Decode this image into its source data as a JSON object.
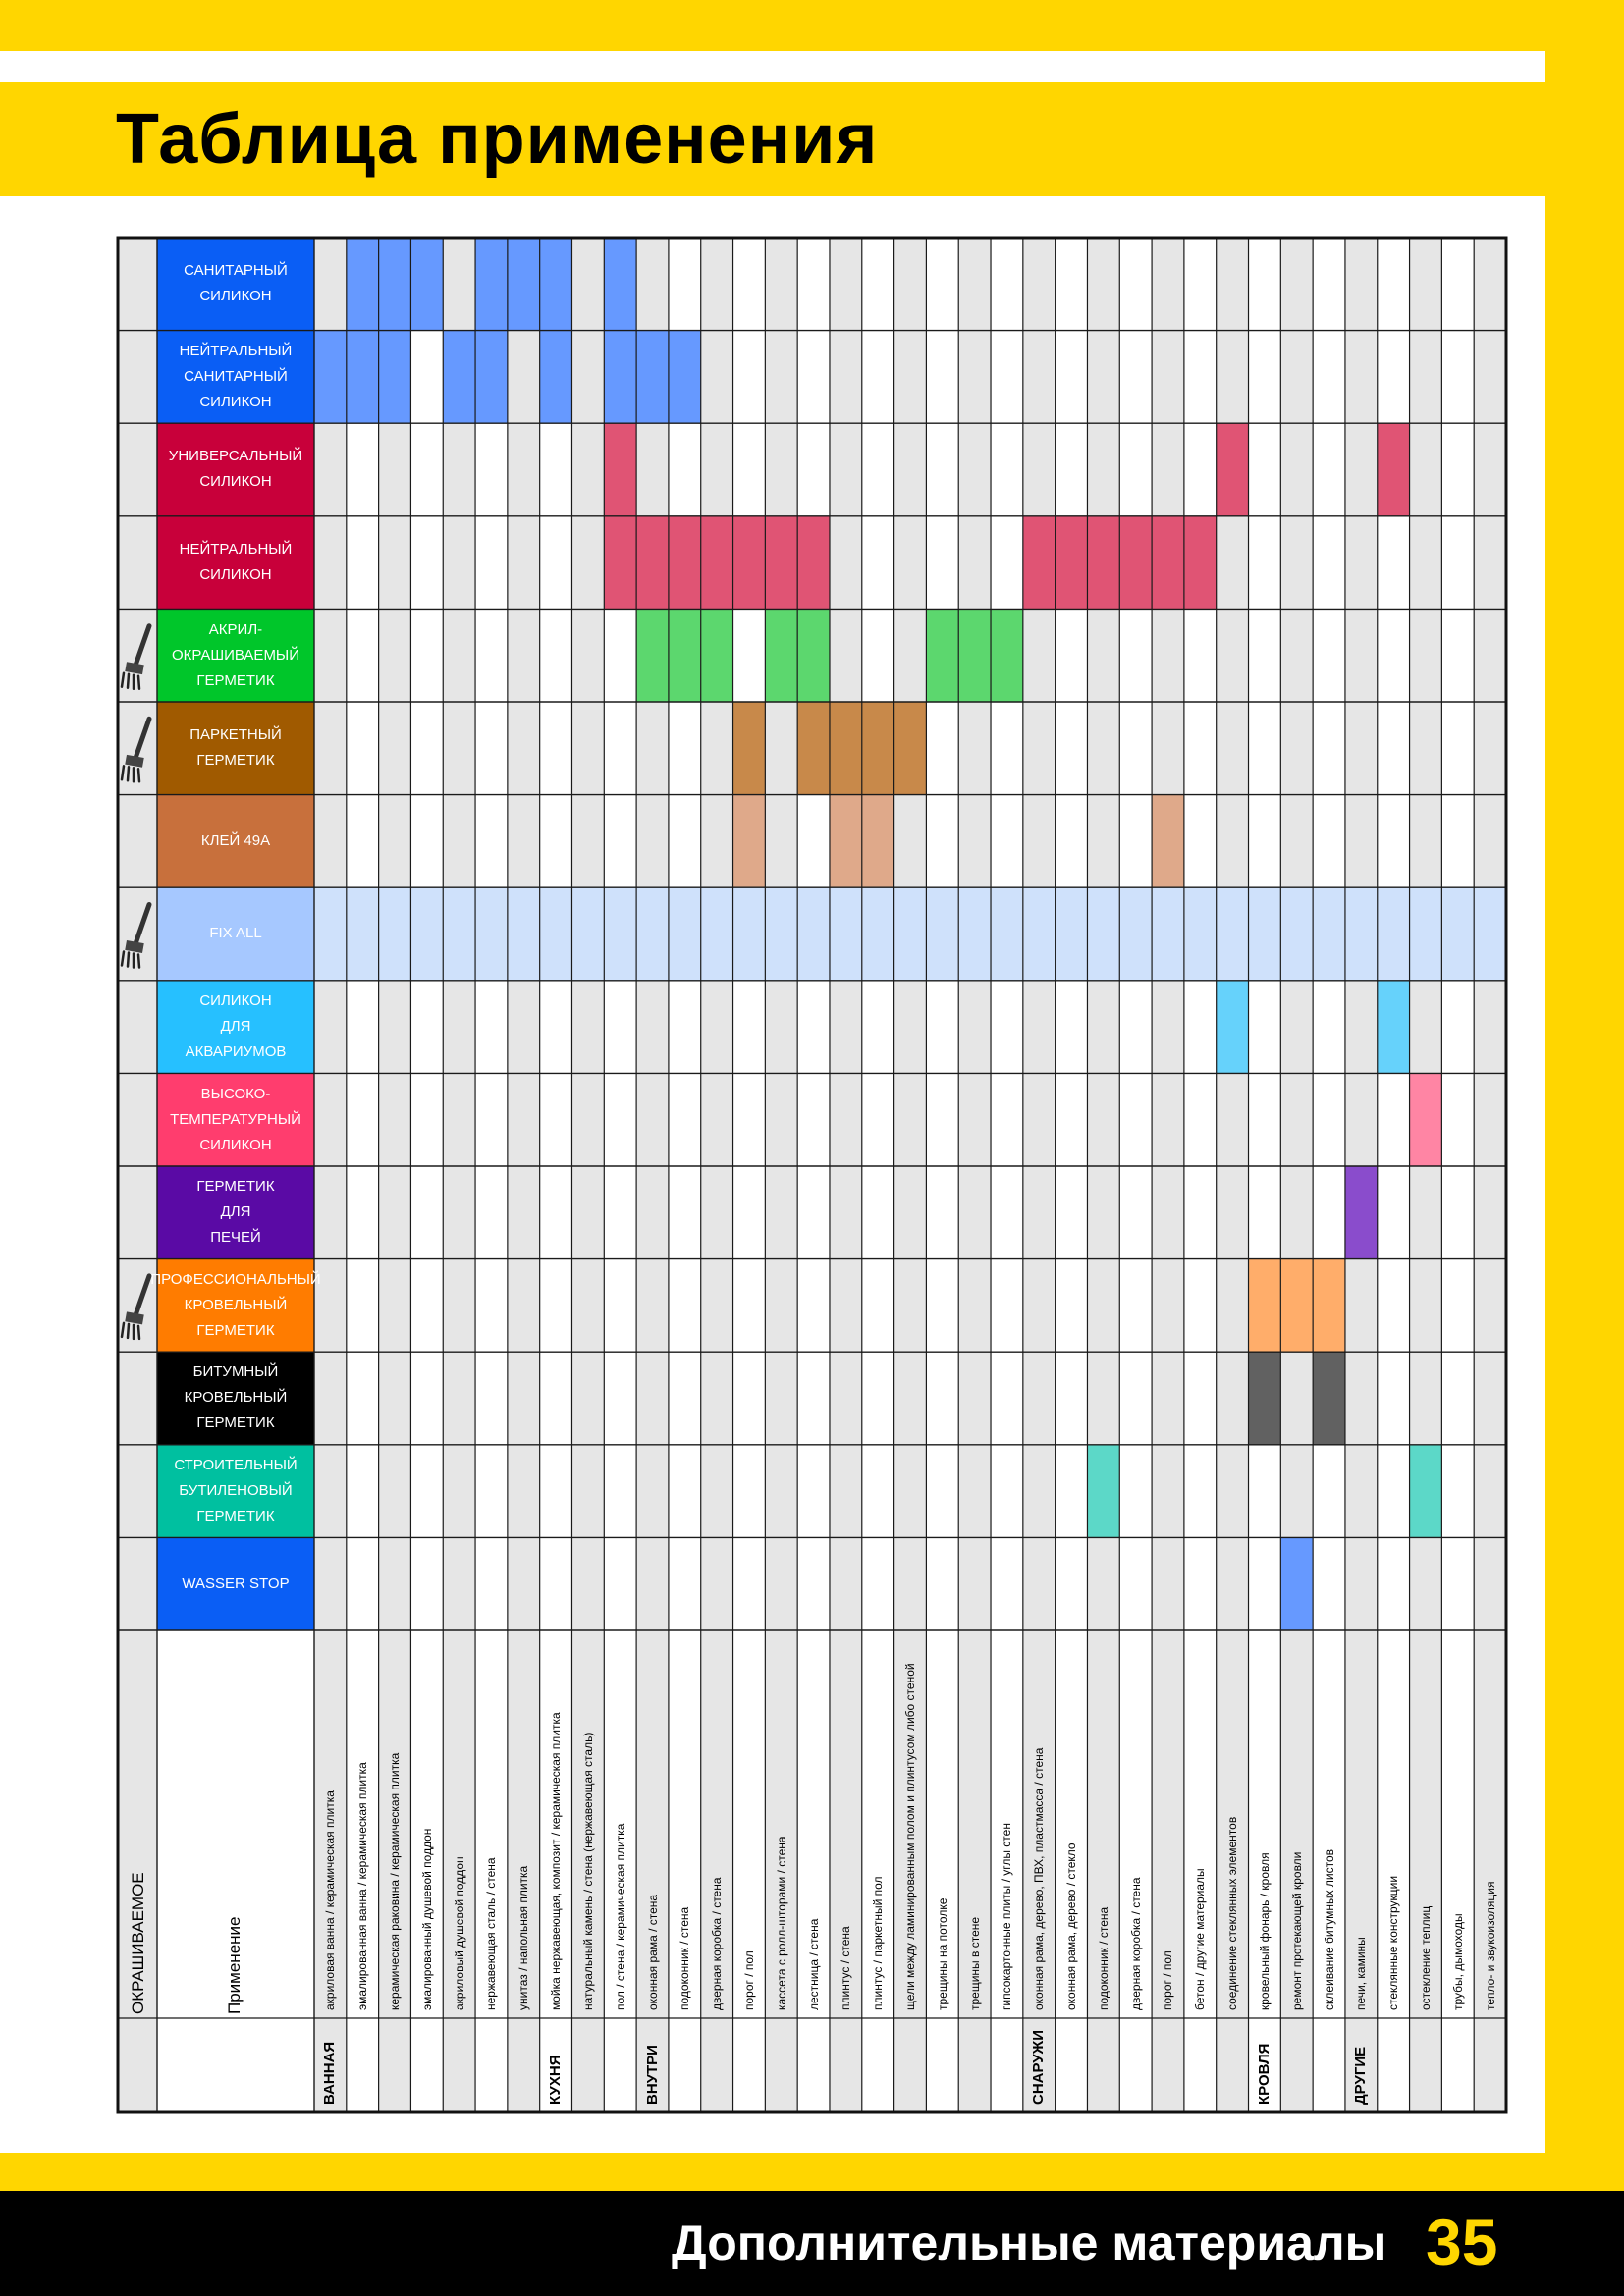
{
  "header": {
    "title": "Таблица применения"
  },
  "footer": {
    "section": "Дополнительные материалы",
    "page_number": "35"
  },
  "table": {
    "paintable_header": "ОКРАШИВАЕМОЕ",
    "application_header": "Применение",
    "colors": {
      "grid_line": "#1a1a1a",
      "gray_col": "#e6e6e6",
      "white_col": "#ffffff"
    },
    "products": [
      {
        "name": "САНИТАРНЫЙ\nСИЛИКОН",
        "color": "#0a5ef5",
        "fill": "#6699ff",
        "paintable": false,
        "cols": [
          1,
          2,
          3,
          5,
          6,
          7,
          9
        ]
      },
      {
        "name": "НЕЙТРАЛЬНЫЙ\nСАНИТАРНЫЙ\nСИЛИКОН",
        "color": "#0a5ef5",
        "fill": "#6699ff",
        "paintable": false,
        "cols": [
          0,
          1,
          2,
          4,
          5,
          7,
          9,
          10,
          11
        ]
      },
      {
        "name": "УНИВЕРСАЛЬНЫЙ\nСИЛИКОН",
        "color": "#c8003a",
        "fill": "#e05474",
        "paintable": false,
        "cols": [
          9,
          28,
          33
        ]
      },
      {
        "name": "НЕЙТРАЛЬНЫЙ\nСИЛИКОН",
        "color": "#c8003a",
        "fill": "#e05474",
        "paintable": false,
        "cols": [
          9,
          10,
          11,
          12,
          13,
          14,
          15,
          22,
          23,
          24,
          25,
          26,
          27
        ]
      },
      {
        "name": "АКРИЛ-\nОКРАШИВАЕМЫЙ\nГЕРМЕТИК",
        "color": "#00c62a",
        "fill": "#5cd76e",
        "paintable": true,
        "cols": [
          10,
          11,
          12,
          14,
          15,
          19,
          20,
          21
        ]
      },
      {
        "name": "ПАРКЕТНЫЙ\nГЕРМЕТИК",
        "color": "#a05a00",
        "fill": "#c8894a",
        "paintable": true,
        "cols": [
          13,
          15,
          16,
          17,
          18
        ]
      },
      {
        "name": "КЛЕЙ 49А",
        "color": "#c8703c",
        "fill": "#dfa98a",
        "paintable": false,
        "cols": [
          13,
          16,
          17,
          26
        ]
      },
      {
        "name": "FIX ALL",
        "color": "#a6c8ff",
        "fill": "#cfe1fb",
        "paintable": true,
        "cols": [
          0,
          1,
          2,
          3,
          4,
          5,
          6,
          7,
          8,
          9,
          10,
          11,
          12,
          13,
          14,
          15,
          16,
          17,
          18,
          19,
          20,
          21,
          22,
          23,
          24,
          25,
          26,
          27,
          28,
          29,
          30,
          31,
          32,
          33,
          34,
          35,
          36
        ]
      },
      {
        "name": "СИЛИКОН\nДЛЯ\nАКВАРИУМОВ",
        "color": "#26c0ff",
        "fill": "#66d2fb",
        "paintable": false,
        "cols": [
          28,
          33
        ]
      },
      {
        "name": "ВЫСОКО-\nТЕМПЕРАТУРНЫЙ\nСИЛИКОН",
        "color": "#ff3d6e",
        "fill": "#ff85a4",
        "paintable": false,
        "cols": [
          34
        ]
      },
      {
        "name": "ГЕРМЕТИК\nДЛЯ\nПЕЧЕЙ",
        "color": "#5a0aa5",
        "fill": "#8a4ccc",
        "paintable": false,
        "cols": [
          32
        ]
      },
      {
        "name": "ПРОФЕССИОНАЛЬНЫЙ\nКРОВЕЛЬНЫЙ\nГЕРМЕТИК",
        "color": "#ff7c00",
        "fill": "#ffad6a",
        "paintable": true,
        "cols": [
          29,
          30,
          31
        ]
      },
      {
        "name": "БИТУМНЫЙ\nКРОВЕЛЬНЫЙ\nГЕРМЕТИК",
        "color": "#000000",
        "fill": "#616161",
        "paintable": false,
        "cols": [
          29,
          31
        ]
      },
      {
        "name": "СТРОИТЕЛЬНЫЙ\nБУТИЛЕНОВЫЙ\nГЕРМЕТИК",
        "color": "#00c0a0",
        "fill": "#5cd8c8",
        "paintable": false,
        "cols": [
          24,
          34
        ]
      },
      {
        "name": "WASSER STOP",
        "color": "#0a5ef5",
        "fill": "#6699ff",
        "paintable": false,
        "cols": [
          30
        ]
      }
    ],
    "applications": [
      {
        "category": "ВАННАЯ",
        "label": "акриловая ванна / керамическая плитка"
      },
      {
        "category": "",
        "label": "эмалированная ванна / керамическая плитка"
      },
      {
        "category": "",
        "label": "керамическая раковина / керамическая плитка"
      },
      {
        "category": "",
        "label": "эмалированный душевой поддон"
      },
      {
        "category": "",
        "label": "акриловый душевой поддон"
      },
      {
        "category": "",
        "label": "нержавеющая сталь / стена"
      },
      {
        "category": "",
        "label": "унитаз / напольная плитка"
      },
      {
        "category": "КУХНЯ",
        "label": "мойка нержавеющая, композит / керамическая плитка"
      },
      {
        "category": "",
        "label": "натуральный камень / стена (нержавеющая сталь)"
      },
      {
        "category": "",
        "label": "пол / стена / керамическая плитка"
      },
      {
        "category": "ВНУТРИ",
        "label": "оконная рама / стена"
      },
      {
        "category": "",
        "label": "подоконник / стена"
      },
      {
        "category": "",
        "label": "дверная коробка / стена"
      },
      {
        "category": "",
        "label": "порог / пол"
      },
      {
        "category": "",
        "label": "кассета с ролл-шторами / стена"
      },
      {
        "category": "",
        "label": "лестница / стена"
      },
      {
        "category": "",
        "label": "плинтус / стена"
      },
      {
        "category": "",
        "label": "плинтус / паркетный пол"
      },
      {
        "category": "",
        "label": "щели между ламинированным полом и плинтусом либо стеной"
      },
      {
        "category": "",
        "label": "трещины на потолке"
      },
      {
        "category": "",
        "label": "трещины в стене"
      },
      {
        "category": "",
        "label": "гипсокартонные плиты / углы стен"
      },
      {
        "category": "СНАРУЖИ",
        "label": "оконная рама, дерево, ПВХ, пластмасса / стена"
      },
      {
        "category": "",
        "label": "оконная рама, дерево / стекло"
      },
      {
        "category": "",
        "label": "подоконник / стена"
      },
      {
        "category": "",
        "label": "дверная коробка / стена"
      },
      {
        "category": "",
        "label": "порог / пол"
      },
      {
        "category": "",
        "label": "бетон / другие материалы"
      },
      {
        "category": "",
        "label": "соединение стеклянных элементов"
      },
      {
        "category": "КРОВЛЯ",
        "label": "кровельный фонарь / кровля"
      },
      {
        "category": "",
        "label": "ремонт протекающей кровли"
      },
      {
        "category": "",
        "label": "склеивание битумных листов"
      },
      {
        "category": "ДРУГИЕ",
        "label": "печи, камины"
      },
      {
        "category": "",
        "label": "стеклянные конструкции"
      },
      {
        "category": "",
        "label": "остекление теплиц"
      },
      {
        "category": "",
        "label": "трубы, дымоходы"
      },
      {
        "category": "",
        "label": "тепло- и звукоизоляция"
      }
    ]
  }
}
